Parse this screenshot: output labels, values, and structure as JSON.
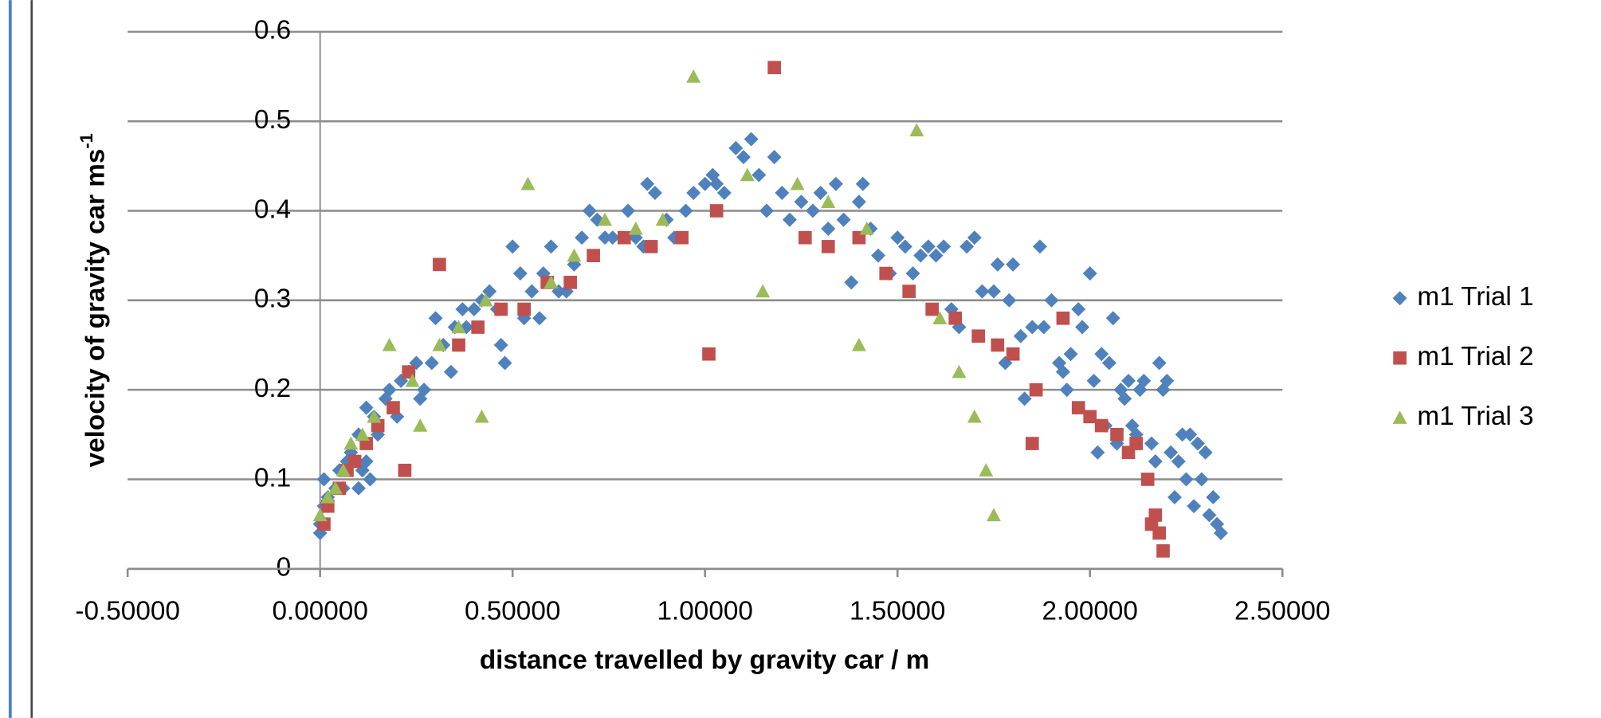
{
  "chart_data": {
    "type": "scatter",
    "x_label": "distance travelled by gravity car / m",
    "y_label": "velocity of gravity car ms",
    "y_label_superscript": "-1",
    "xlim": [
      -0.5,
      2.5
    ],
    "xticks": [
      {
        "value": -0.5,
        "label": "-0.50000"
      },
      {
        "value": 0,
        "label": "0.00000"
      },
      {
        "value": 0.5,
        "label": "0.50000"
      },
      {
        "value": 1,
        "label": "1.00000"
      },
      {
        "value": 1.5,
        "label": "1.50000"
      },
      {
        "value": 2,
        "label": "2.00000"
      },
      {
        "value": 2.5,
        "label": "2.50000"
      }
    ],
    "ylim": [
      0,
      0.6
    ],
    "yticks": [
      0,
      0.1,
      0.2,
      0.3,
      0.4,
      0.5,
      0.6
    ],
    "grid": true,
    "legend": "right",
    "series": [
      {
        "name": "m1 Trial 1",
        "color": "#4f81bd",
        "marker": "diamond",
        "x": [
          0.0,
          0.0,
          0.01,
          0.01,
          0.02,
          0.04,
          0.05,
          0.06,
          0.07,
          0.08,
          0.1,
          0.1,
          0.11,
          0.12,
          0.12,
          0.13,
          0.14,
          0.15,
          0.17,
          0.18,
          0.2,
          0.21,
          0.23,
          0.25,
          0.26,
          0.27,
          0.29,
          0.3,
          0.32,
          0.34,
          0.35,
          0.37,
          0.38,
          0.4,
          0.42,
          0.44,
          0.46,
          0.47,
          0.48,
          0.5,
          0.52,
          0.53,
          0.55,
          0.57,
          0.58,
          0.6,
          0.62,
          0.64,
          0.66,
          0.68,
          0.7,
          0.72,
          0.74,
          0.76,
          0.8,
          0.82,
          0.84,
          0.85,
          0.87,
          0.9,
          0.92,
          0.95,
          0.97,
          1.0,
          1.02,
          1.03,
          1.05,
          1.08,
          1.1,
          1.12,
          1.14,
          1.16,
          1.18,
          1.2,
          1.22,
          1.25,
          1.28,
          1.3,
          1.32,
          1.34,
          1.36,
          1.38,
          1.4,
          1.41,
          1.43,
          1.45,
          1.48,
          1.5,
          1.52,
          1.54,
          1.56,
          1.58,
          1.6,
          1.62,
          1.64,
          1.66,
          1.68,
          1.7,
          1.72,
          1.75,
          1.76,
          1.78,
          1.79,
          1.8,
          1.82,
          1.83,
          1.85,
          1.87,
          1.88,
          1.9,
          1.92,
          1.93,
          1.94,
          1.95,
          1.97,
          1.98,
          2.0,
          2.01,
          2.02,
          2.03,
          2.04,
          2.05,
          2.06,
          2.07,
          2.08,
          2.09,
          2.1,
          2.11,
          2.12,
          2.13,
          2.14,
          2.16,
          2.17,
          2.18,
          2.19,
          2.2,
          2.21,
          2.22,
          2.23,
          2.24,
          2.25,
          2.26,
          2.27,
          2.28,
          2.29,
          2.3,
          2.31,
          2.32,
          2.33,
          2.34
        ],
        "values": [
          0.04,
          0.05,
          0.07,
          0.1,
          0.08,
          0.09,
          0.11,
          0.09,
          0.12,
          0.13,
          0.09,
          0.15,
          0.11,
          0.18,
          0.12,
          0.1,
          0.17,
          0.15,
          0.19,
          0.2,
          0.17,
          0.21,
          0.22,
          0.23,
          0.19,
          0.2,
          0.23,
          0.28,
          0.25,
          0.22,
          0.27,
          0.29,
          0.27,
          0.29,
          0.3,
          0.31,
          0.29,
          0.25,
          0.23,
          0.36,
          0.33,
          0.28,
          0.31,
          0.28,
          0.33,
          0.36,
          0.31,
          0.31,
          0.34,
          0.37,
          0.4,
          0.39,
          0.37,
          0.37,
          0.4,
          0.37,
          0.36,
          0.43,
          0.42,
          0.39,
          0.37,
          0.4,
          0.42,
          0.43,
          0.44,
          0.43,
          0.42,
          0.47,
          0.46,
          0.48,
          0.44,
          0.4,
          0.46,
          0.42,
          0.39,
          0.41,
          0.4,
          0.42,
          0.38,
          0.43,
          0.39,
          0.32,
          0.41,
          0.43,
          0.38,
          0.35,
          0.33,
          0.37,
          0.36,
          0.33,
          0.35,
          0.36,
          0.35,
          0.36,
          0.29,
          0.27,
          0.36,
          0.37,
          0.31,
          0.31,
          0.34,
          0.23,
          0.3,
          0.34,
          0.26,
          0.19,
          0.27,
          0.36,
          0.27,
          0.3,
          0.23,
          0.22,
          0.2,
          0.24,
          0.29,
          0.27,
          0.33,
          0.21,
          0.13,
          0.24,
          0.16,
          0.23,
          0.28,
          0.14,
          0.2,
          0.19,
          0.21,
          0.16,
          0.15,
          0.2,
          0.21,
          0.14,
          0.12,
          0.23,
          0.2,
          0.21,
          0.13,
          0.08,
          0.12,
          0.15,
          0.1,
          0.15,
          0.07,
          0.14,
          0.1,
          0.13,
          0.06,
          0.08,
          0.05,
          0.04
        ]
      },
      {
        "name": "m1 Trial 2",
        "color": "#c0504d",
        "marker": "square",
        "x": [
          0.01,
          0.02,
          0.05,
          0.07,
          0.09,
          0.12,
          0.15,
          0.19,
          0.23,
          0.22,
          0.31,
          0.36,
          0.41,
          0.47,
          0.53,
          0.59,
          0.65,
          0.71,
          0.79,
          0.86,
          0.94,
          1.01,
          1.03,
          1.18,
          1.26,
          1.32,
          1.4,
          1.47,
          1.53,
          1.59,
          1.65,
          1.71,
          1.76,
          1.8,
          1.85,
          1.86,
          1.93,
          1.97,
          2.0,
          2.03,
          2.07,
          2.1,
          2.12,
          2.15,
          2.16,
          2.17,
          2.18,
          2.19
        ],
        "values": [
          0.05,
          0.07,
          0.09,
          0.11,
          0.12,
          0.14,
          0.16,
          0.18,
          0.22,
          0.11,
          0.34,
          0.25,
          0.27,
          0.29,
          0.29,
          0.32,
          0.32,
          0.35,
          0.37,
          0.36,
          0.37,
          0.24,
          0.4,
          0.56,
          0.37,
          0.36,
          0.37,
          0.33,
          0.31,
          0.29,
          0.28,
          0.26,
          0.25,
          0.24,
          0.14,
          0.2,
          0.28,
          0.18,
          0.17,
          0.16,
          0.15,
          0.13,
          0.14,
          0.1,
          0.05,
          0.06,
          0.04,
          0.02
        ]
      },
      {
        "name": "m1 Trial 3",
        "color": "#9bbb59",
        "marker": "triangle",
        "x": [
          0.0,
          0.02,
          0.04,
          0.06,
          0.08,
          0.11,
          0.14,
          0.18,
          0.24,
          0.26,
          0.31,
          0.36,
          0.42,
          0.43,
          0.54,
          0.6,
          0.66,
          0.74,
          0.82,
          0.89,
          0.97,
          1.11,
          1.15,
          1.24,
          1.32,
          1.4,
          1.42,
          1.55,
          1.61,
          1.66,
          1.7,
          1.73,
          1.75
        ],
        "values": [
          0.06,
          0.08,
          0.09,
          0.11,
          0.14,
          0.15,
          0.17,
          0.25,
          0.21,
          0.16,
          0.25,
          0.27,
          0.17,
          0.3,
          0.43,
          0.32,
          0.35,
          0.39,
          0.38,
          0.39,
          0.55,
          0.44,
          0.31,
          0.43,
          0.41,
          0.25,
          0.38,
          0.49,
          0.28,
          0.22,
          0.17,
          0.11,
          0.06
        ]
      }
    ]
  }
}
